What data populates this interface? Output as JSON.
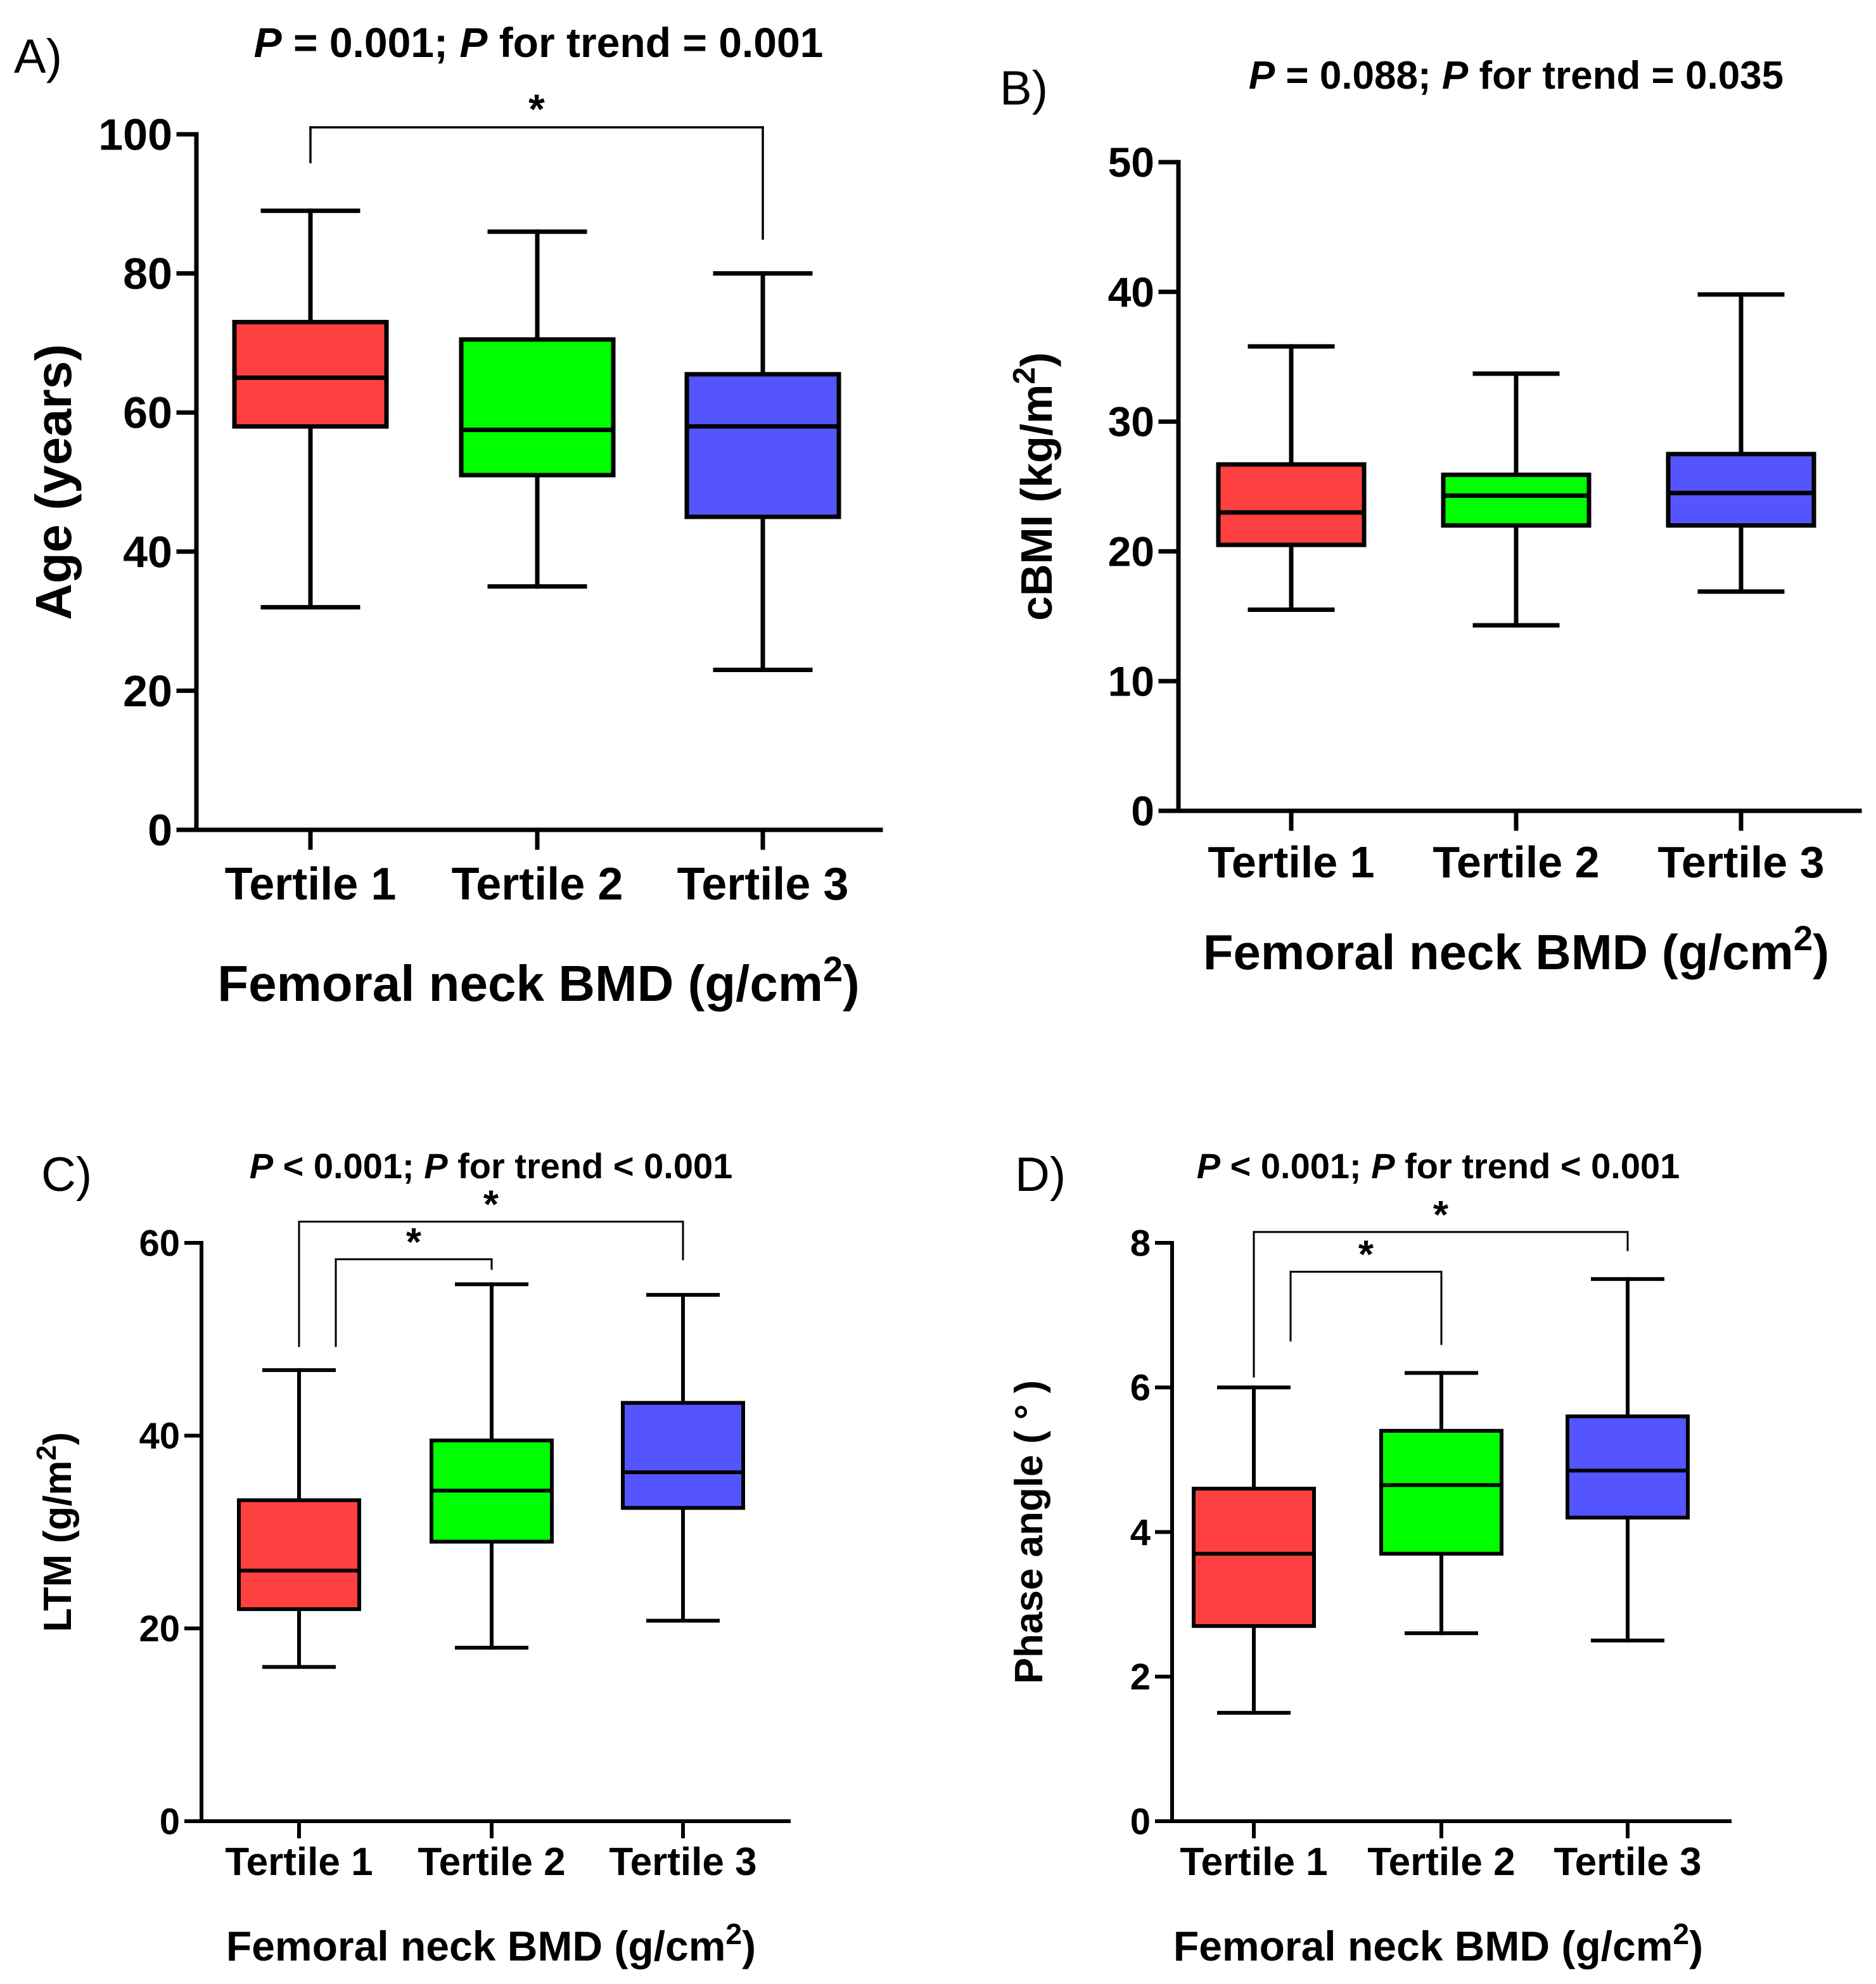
{
  "chart_data": [
    {
      "panel": "A)",
      "type": "boxplot",
      "title": "P = 0.001; P for trend = 0.001",
      "xlabel": "Femoral neck BMD (g/cm2)",
      "ylabel": "Age (years)",
      "ylim": [
        0,
        100
      ],
      "yticks": [
        0,
        20,
        40,
        60,
        80,
        100
      ],
      "categories": [
        "Tertile 1",
        "Tertile 2",
        "Tertile 3"
      ],
      "colors": [
        "#ff4040",
        "#00ff00",
        "#5555ff"
      ],
      "boxes": [
        {
          "min": 32,
          "q1": 58,
          "median": 65,
          "q3": 73,
          "max": 89
        },
        {
          "min": 35,
          "q1": 51,
          "median": 57.5,
          "q3": 70.5,
          "max": 86
        },
        {
          "min": 23,
          "q1": 45,
          "median": 58,
          "q3": 65.5,
          "max": 80
        }
      ],
      "brackets": [
        {
          "from": 0,
          "to": 2,
          "level": 101,
          "from_end": 96,
          "to_end": 85,
          "label": "*"
        }
      ]
    },
    {
      "panel": "B)",
      "type": "boxplot",
      "title": "P = 0.088; P for trend = 0.035",
      "xlabel": "Femoral neck BMD (g/cm2)",
      "ylabel": "cBMI (kg/m2)",
      "ylim": [
        0,
        50
      ],
      "yticks": [
        0,
        10,
        20,
        30,
        40,
        50
      ],
      "categories": [
        "Tertile 1",
        "Tertile 2",
        "Tertile 3"
      ],
      "colors": [
        "#ff4040",
        "#00ff00",
        "#5555ff"
      ],
      "boxes": [
        {
          "min": 15.5,
          "q1": 20.5,
          "median": 23,
          "q3": 26.7,
          "max": 35.8
        },
        {
          "min": 14.3,
          "q1": 22,
          "median": 24.3,
          "q3": 25.9,
          "max": 33.7
        },
        {
          "min": 16.9,
          "q1": 22,
          "median": 24.5,
          "q3": 27.5,
          "max": 39.8
        }
      ],
      "brackets": []
    },
    {
      "panel": "C)",
      "type": "boxplot",
      "title": "P < 0.001; P for trend < 0.001",
      "xlabel": "Femoral neck BMD (g/cm2)",
      "ylabel": "LTM (g/m2)",
      "ylim": [
        0,
        60
      ],
      "yticks": [
        0,
        20,
        40,
        60
      ],
      "categories": [
        "Tertile 1",
        "Tertile 2",
        "Tertile 3"
      ],
      "colors": [
        "#ff4040",
        "#00ff00",
        "#5555ff"
      ],
      "boxes": [
        {
          "min": 16,
          "q1": 22,
          "median": 26,
          "q3": 33.3,
          "max": 46.8
        },
        {
          "min": 18,
          "q1": 29,
          "median": 34.3,
          "q3": 39.5,
          "max": 55.7
        },
        {
          "min": 20.8,
          "q1": 32.5,
          "median": 36.2,
          "q3": 43.4,
          "max": 54.6
        }
      ],
      "brackets": [
        {
          "from": 0,
          "to": 2,
          "level": 62.2,
          "from_end": 49.3,
          "to_end": 58.3,
          "label": "*"
        },
        {
          "from": 0,
          "to": 1,
          "level": 58.3,
          "from_end": 49.3,
          "to_end": 57.3,
          "label": "*"
        }
      ]
    },
    {
      "panel": "D)",
      "type": "boxplot",
      "title": "P < 0.001; P for trend < 0.001",
      "xlabel": "Femoral neck BMD (g/cm2)",
      "ylabel": "Phase angle ( ° )",
      "ylim": [
        0,
        8
      ],
      "yticks": [
        0,
        2,
        4,
        6,
        8
      ],
      "categories": [
        "Tertile 1",
        "Tertile 2",
        "Tertile 3"
      ],
      "colors": [
        "#ff4040",
        "#00ff00",
        "#5555ff"
      ],
      "boxes": [
        {
          "min": 1.5,
          "q1": 2.7,
          "median": 3.7,
          "q3": 4.6,
          "max": 6
        },
        {
          "min": 2.6,
          "q1": 3.7,
          "median": 4.65,
          "q3": 5.4,
          "max": 6.2
        },
        {
          "min": 2.5,
          "q1": 4.2,
          "median": 4.85,
          "q3": 5.6,
          "max": 7.5
        }
      ],
      "brackets": [
        {
          "from": 0,
          "to": 2,
          "level": 8.15,
          "from_end": 6.15,
          "to_end": 7.9,
          "label": "*"
        },
        {
          "from": 0,
          "to": 1,
          "level": 7.6,
          "from_end": 6.65,
          "to_end": 6.6,
          "label": "*"
        }
      ]
    }
  ]
}
